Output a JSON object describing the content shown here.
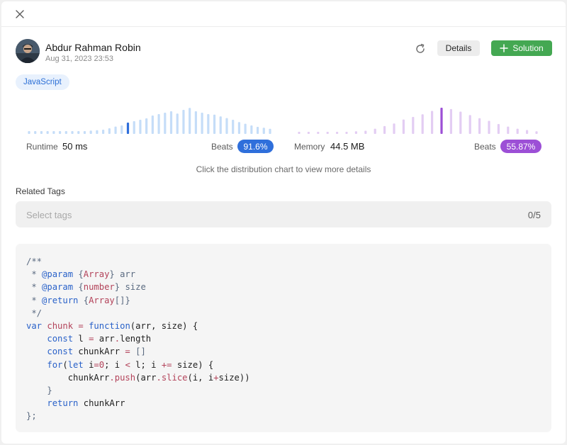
{
  "header": {
    "author_name": "Abdur Rahman Robin",
    "timestamp": "Aug 31, 2023 23:53",
    "details_label": "Details",
    "solution_label": "Solution"
  },
  "language_tag": "JavaScript",
  "runtime": {
    "label": "Runtime",
    "value": "50 ms",
    "beats_label": "Beats",
    "beats_percent": "91.6%",
    "accent_color": "#2f6fdb",
    "bar_color": "#c5ddf8",
    "distribution": [
      0.1,
      0.1,
      0.1,
      0.1,
      0.1,
      0.1,
      0.1,
      0.1,
      0.1,
      0.1,
      0.12,
      0.13,
      0.15,
      0.2,
      0.26,
      0.3,
      0.4,
      0.45,
      0.5,
      0.55,
      0.65,
      0.7,
      0.75,
      0.8,
      0.72,
      0.85,
      0.92,
      0.8,
      0.75,
      0.7,
      0.68,
      0.62,
      0.56,
      0.5,
      0.42,
      0.36,
      0.3,
      0.25,
      0.22,
      0.18
    ],
    "highlight_index": 16
  },
  "memory": {
    "label": "Memory",
    "value": "44.5 MB",
    "beats_label": "Beats",
    "beats_percent": "55.87%",
    "accent_color": "#9c4fd6",
    "bar_color": "#e3cdf3",
    "distribution": [
      0.08,
      0.08,
      0.08,
      0.08,
      0.08,
      0.08,
      0.1,
      0.12,
      0.2,
      0.3,
      0.4,
      0.55,
      0.65,
      0.75,
      0.88,
      1.0,
      0.95,
      0.85,
      0.72,
      0.6,
      0.5,
      0.38,
      0.28,
      0.2,
      0.15,
      0.1
    ],
    "highlight_index": 15
  },
  "hint_text": "Click the distribution chart to view more details",
  "related_tags": {
    "title": "Related Tags",
    "placeholder": "Select tags",
    "count": "0/5"
  },
  "code": {
    "lines": [
      [
        {
          "t": "/**",
          "c": "c"
        }
      ],
      [
        {
          "t": " * ",
          "c": "c"
        },
        {
          "t": "@param",
          "c": "k"
        },
        {
          "t": " {",
          "c": "c"
        },
        {
          "t": "Array",
          "c": "t"
        },
        {
          "t": "} arr",
          "c": "c"
        }
      ],
      [
        {
          "t": " * ",
          "c": "c"
        },
        {
          "t": "@param",
          "c": "k"
        },
        {
          "t": " {",
          "c": "c"
        },
        {
          "t": "number",
          "c": "t"
        },
        {
          "t": "} size",
          "c": "c"
        }
      ],
      [
        {
          "t": " * ",
          "c": "c"
        },
        {
          "t": "@return",
          "c": "k"
        },
        {
          "t": " {",
          "c": "c"
        },
        {
          "t": "Array",
          "c": "t"
        },
        {
          "t": "[]}",
          "c": "c"
        }
      ],
      [
        {
          "t": " */",
          "c": "c"
        }
      ],
      [
        {
          "t": "var",
          "c": "k"
        },
        {
          "t": " chunk ",
          "c": "t"
        },
        {
          "t": "=",
          "c": "o"
        },
        {
          "t": " ",
          "c": ""
        },
        {
          "t": "function",
          "c": "k"
        },
        {
          "t": "(arr, size) {",
          "c": ""
        }
      ],
      [
        {
          "t": "    ",
          "c": ""
        },
        {
          "t": "const",
          "c": "k"
        },
        {
          "t": " l ",
          "c": ""
        },
        {
          "t": "=",
          "c": "o"
        },
        {
          "t": " arr",
          "c": ""
        },
        {
          "t": ".",
          "c": "o"
        },
        {
          "t": "length",
          "c": ""
        }
      ],
      [
        {
          "t": "    ",
          "c": ""
        },
        {
          "t": "const",
          "c": "k"
        },
        {
          "t": " chunkArr ",
          "c": ""
        },
        {
          "t": "=",
          "c": "o"
        },
        {
          "t": " []",
          "c": "c"
        }
      ],
      [
        {
          "t": "    ",
          "c": ""
        },
        {
          "t": "for",
          "c": "k"
        },
        {
          "t": "(",
          "c": ""
        },
        {
          "t": "let",
          "c": "k"
        },
        {
          "t": " i",
          "c": ""
        },
        {
          "t": "=",
          "c": "o"
        },
        {
          "t": "0",
          "c": "n"
        },
        {
          "t": "; i ",
          "c": ""
        },
        {
          "t": "<",
          "c": "o"
        },
        {
          "t": " l; i ",
          "c": ""
        },
        {
          "t": "+=",
          "c": "o"
        },
        {
          "t": " size) {",
          "c": ""
        }
      ],
      [
        {
          "t": "        chunkArr",
          "c": ""
        },
        {
          "t": ".",
          "c": "o"
        },
        {
          "t": "push",
          "c": "t"
        },
        {
          "t": "(arr",
          "c": ""
        },
        {
          "t": ".",
          "c": "o"
        },
        {
          "t": "slice",
          "c": "t"
        },
        {
          "t": "(i, i",
          "c": ""
        },
        {
          "t": "+",
          "c": "o"
        },
        {
          "t": "size))",
          "c": ""
        }
      ],
      [
        {
          "t": "    }",
          "c": "c"
        }
      ],
      [
        {
          "t": "    ",
          "c": ""
        },
        {
          "t": "return",
          "c": "k"
        },
        {
          "t": " chunkArr",
          "c": ""
        }
      ],
      [
        {
          "t": "};",
          "c": "c"
        }
      ]
    ]
  }
}
